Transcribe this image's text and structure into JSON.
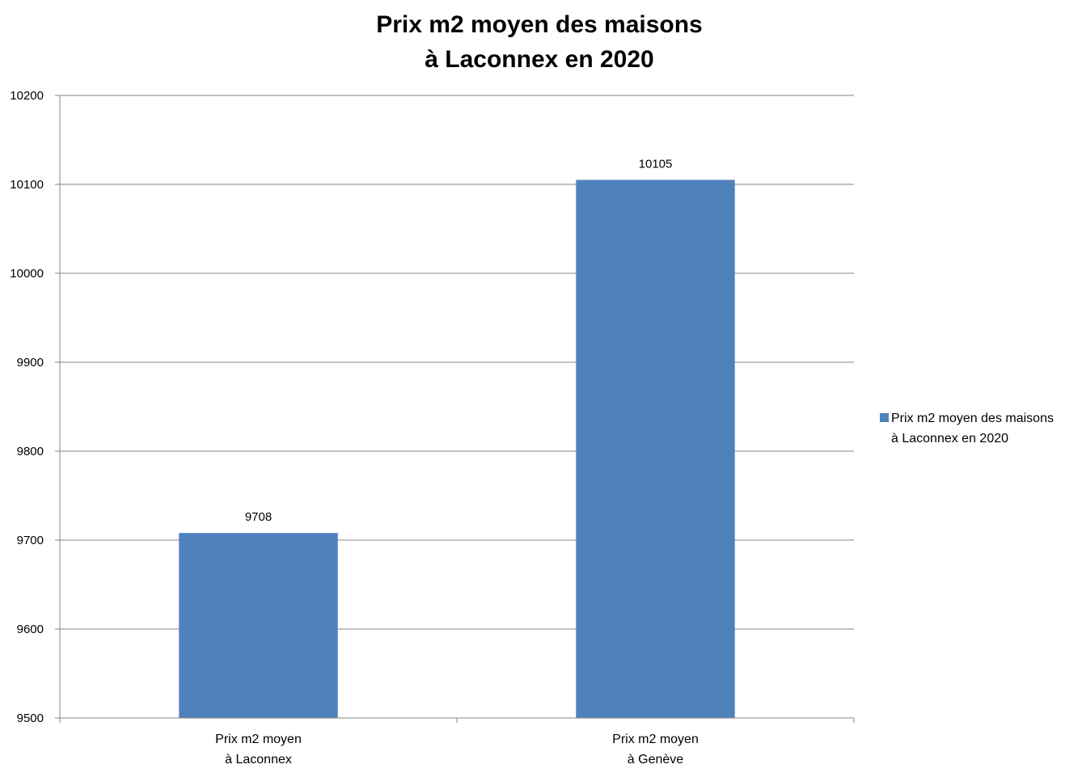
{
  "chart_data": {
    "type": "bar",
    "title_lines": [
      "Prix m2 moyen des maisons",
      "à Laconnex en 2020"
    ],
    "categories": [
      [
        "Prix m2 moyen",
        "à Laconnex"
      ],
      [
        "Prix m2 moyen",
        "à Genève"
      ]
    ],
    "series": [
      {
        "name_lines": [
          "Prix m2 moyen des maisons",
          "à Laconnex en 2020"
        ],
        "values": [
          9708,
          10105
        ],
        "color": "#4f81bd"
      }
    ],
    "data_labels": [
      "9708",
      "10105"
    ],
    "ylim": [
      9500,
      10200
    ],
    "yticks": [
      "9500",
      "9600",
      "9700",
      "9800",
      "9900",
      "10000",
      "10100",
      "10200"
    ],
    "ytick_values": [
      9500,
      9600,
      9700,
      9800,
      9900,
      10000,
      10100,
      10200
    ],
    "grid": true,
    "legend_position": "right",
    "gridline_color": "#868686",
    "axis_color": "#868686"
  }
}
